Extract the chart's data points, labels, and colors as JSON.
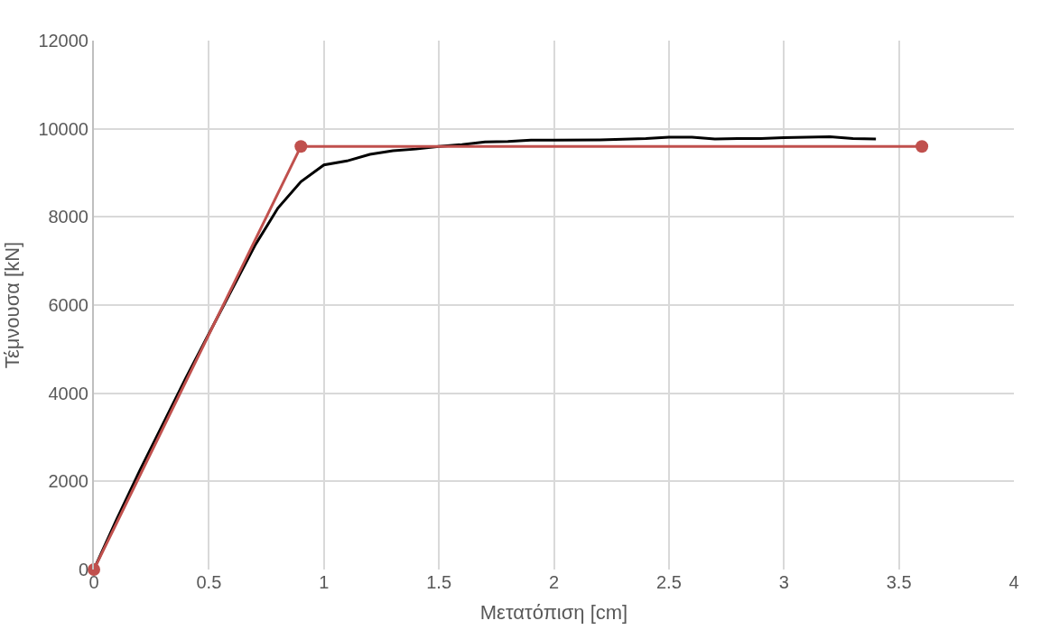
{
  "chart_data": {
    "type": "line",
    "xlabel": "Μετατόπιση [cm]",
    "ylabel": "Τέμνουσα [kN]",
    "xlim": [
      0,
      4
    ],
    "xticks": [
      0,
      0.5,
      1,
      1.5,
      2,
      2.5,
      3,
      3.5,
      4
    ],
    "ylim": [
      0,
      12000
    ],
    "yticks": [
      0,
      2000,
      4000,
      6000,
      8000,
      10000,
      12000
    ],
    "grid": true,
    "series": [
      {
        "color": "#000000",
        "marker": "none",
        "x": [
          0,
          0.1,
          0.2,
          0.3,
          0.4,
          0.5,
          0.6,
          0.7,
          0.8,
          0.9,
          1.0,
          1.1,
          1.2,
          1.3,
          1.4,
          1.5,
          1.6,
          1.7,
          1.8,
          1.9,
          2.0,
          2.2,
          2.4,
          2.5,
          2.6,
          2.7,
          2.8,
          2.9,
          3.0,
          3.1,
          3.2,
          3.3,
          3.4
        ],
        "values": [
          0,
          1150,
          2250,
          3300,
          4350,
          5350,
          6350,
          7350,
          8200,
          8800,
          9180,
          9270,
          9420,
          9500,
          9540,
          9600,
          9640,
          9700,
          9710,
          9740,
          9740,
          9750,
          9780,
          9810,
          9810,
          9770,
          9780,
          9780,
          9800,
          9810,
          9820,
          9780,
          9770
        ]
      },
      {
        "color": "#c0504d",
        "marker": "circle",
        "x": [
          0,
          0.9,
          3.6
        ],
        "values": [
          0,
          9600,
          9600
        ]
      }
    ]
  }
}
